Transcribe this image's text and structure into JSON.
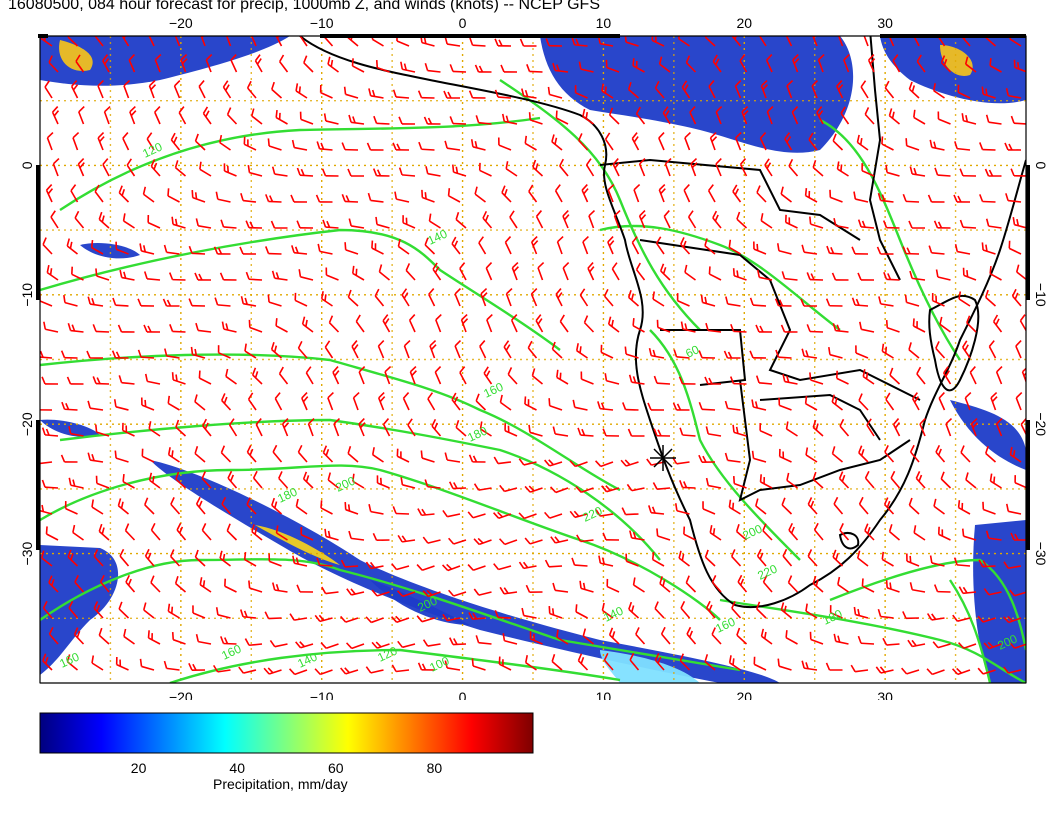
{
  "title": "16080500, 084 hour forecast for precip, 1000mb Z, and winds (knots) -- NCEP GFS",
  "map": {
    "region": "South Atlantic and southern Africa",
    "projection": "lat-lon",
    "lon_range": [
      -30,
      40
    ],
    "lat_range": [
      -40,
      10
    ],
    "grid": "dotted",
    "grid_color": "#e0a800",
    "coastline_color": "#000000",
    "contour_color": "#33dd33",
    "wind_barb_color": "#ff0000",
    "x_ticks": [
      "-20",
      "-10",
      "0",
      "10",
      "20",
      "30"
    ],
    "y_ticks": [
      "0",
      "-10",
      "-20",
      "-30"
    ],
    "contour_labels": [
      "120",
      "140",
      "160",
      "180",
      "200",
      "180",
      "200",
      "220",
      "220",
      "200",
      "180",
      "160",
      "140",
      "120",
      "100",
      "60",
      "160",
      "140",
      "200",
      "160"
    ],
    "marker": "star"
  },
  "colorbar": {
    "caption": "Precipitation, mm/day",
    "ticks": [
      "20",
      "40",
      "60",
      "80"
    ],
    "colors": [
      "#00007f",
      "#0000ff",
      "#007fff",
      "#00ffff",
      "#7fff7f",
      "#ffff00",
      "#ff7f00",
      "#ff0000",
      "#7f0000"
    ]
  }
}
